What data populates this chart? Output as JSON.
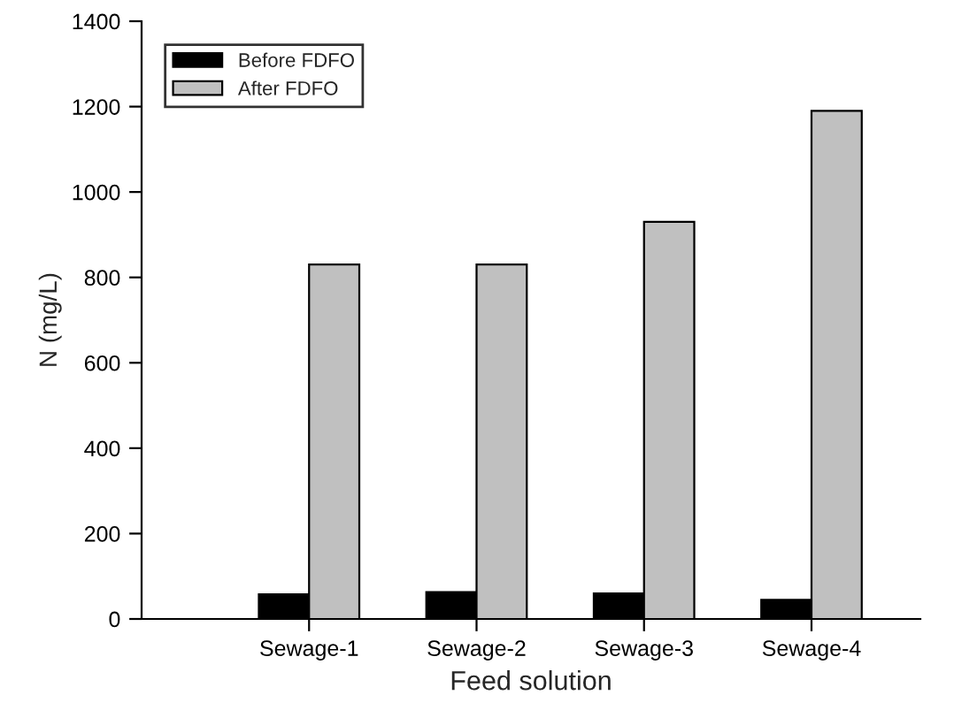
{
  "chart_data": {
    "type": "bar",
    "xlabel": "Feed solution",
    "ylabel": "N (mg/L)",
    "categories": [
      "Sewage-1",
      "Sewage-2",
      "Sewage-3",
      "Sewage-4"
    ],
    "series": [
      {
        "name": "Before FDFO",
        "color": "#000000",
        "values": [
          58,
          63,
          60,
          45
        ]
      },
      {
        "name": "After FDFO",
        "color": "#c0c0c0",
        "values": [
          830,
          830,
          930,
          1190
        ]
      }
    ],
    "ylim": [
      0,
      1400
    ],
    "yticks": [
      0,
      200,
      400,
      600,
      800,
      1000,
      1200,
      1400
    ],
    "legend": "top left",
    "grid": false
  }
}
